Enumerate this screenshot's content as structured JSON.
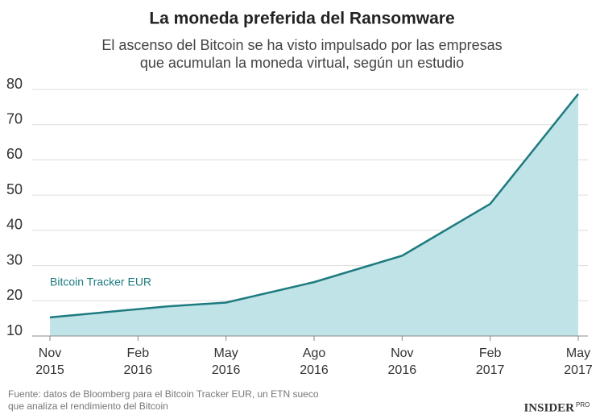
{
  "chart_data": {
    "type": "area",
    "title": "La moneda preferida del Ransomware",
    "subtitle": [
      "El ascenso del Bitcoin se ha visto impulsado por las empresas",
      "que acumulan la moneda virtual, según un estudio"
    ],
    "x": [
      "2015-11",
      "2016-03",
      "2016-05",
      "2016-08",
      "2016-11",
      "2017-02",
      "2017-05"
    ],
    "series": [
      {
        "name": "Bitcoin Tracker EUR",
        "color": "#1d7b80",
        "fill": "#bfe3e6",
        "values": [
          15.3,
          18.4,
          19.5,
          25.3,
          32.8,
          47.5,
          78.7
        ]
      }
    ],
    "xlim": [
      "2015-11",
      "2017-05"
    ],
    "xticks": [
      {
        "value": "2015-11",
        "label": [
          "Nov",
          "2015"
        ]
      },
      {
        "value": "2016-02",
        "label": [
          "Feb",
          "2016"
        ]
      },
      {
        "value": "2016-05",
        "label": [
          "May",
          "2016"
        ]
      },
      {
        "value": "2016-08",
        "label": [
          "Ago",
          "2016"
        ]
      },
      {
        "value": "2016-11",
        "label": [
          "Nov",
          "2016"
        ]
      },
      {
        "value": "2017-02",
        "label": [
          "Feb",
          "2017"
        ]
      },
      {
        "value": "2017-05",
        "label": [
          "May",
          "2017"
        ]
      }
    ],
    "ylim": [
      10,
      80
    ],
    "yticks": [
      10,
      20,
      30,
      40,
      50,
      60,
      70,
      80
    ],
    "grid": true,
    "source": [
      "Fuente: datos de Bloomberg para el Bitcoin Tracker EUR, un ETN sueco",
      "que analiza el rendimiento del Bitcoin"
    ],
    "brand": {
      "name": "INSIDER",
      "tag": "PRO"
    }
  }
}
